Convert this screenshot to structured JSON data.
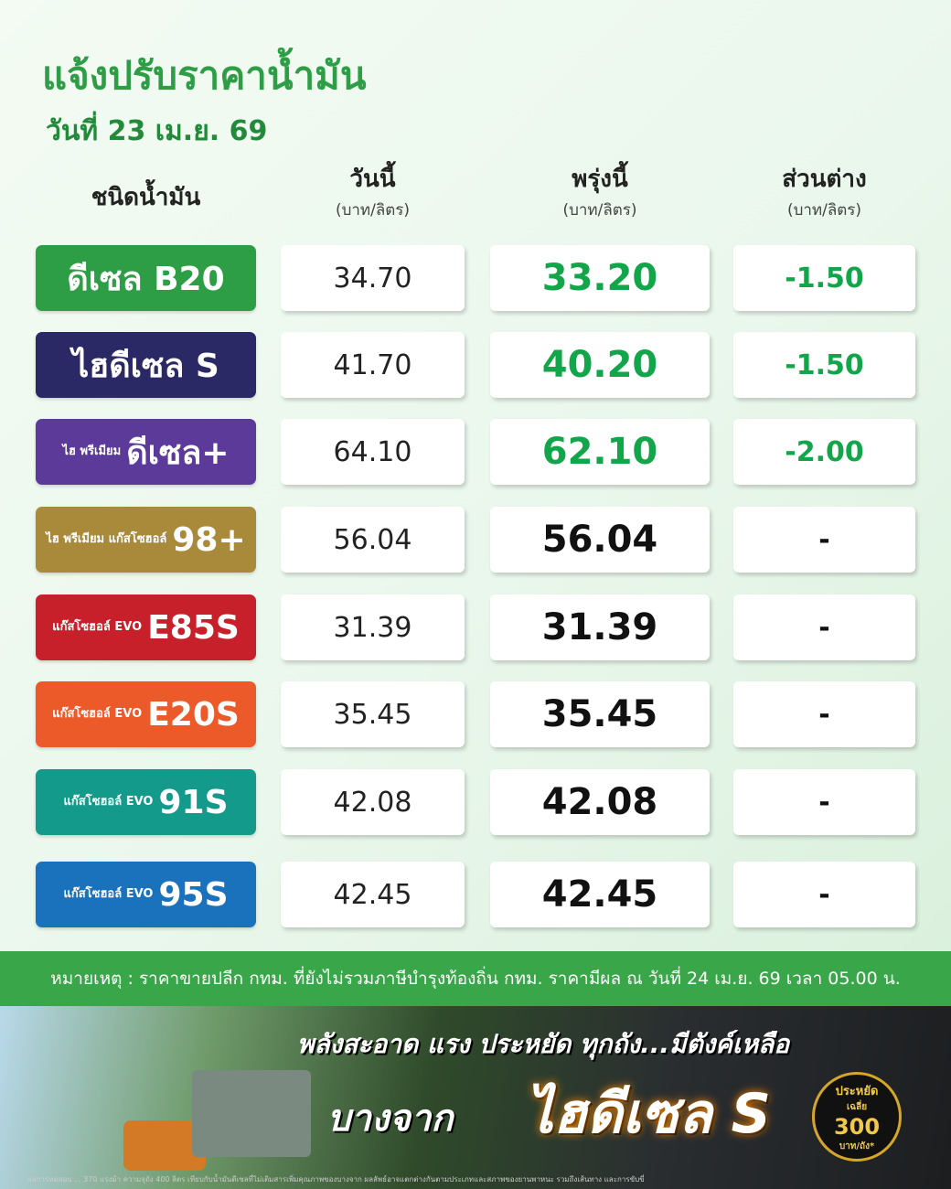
{
  "title": "แจ้งปรับราคาน้ำมัน",
  "date": "วันที่ 23 เม.ย. 69",
  "headers": {
    "type": "ชนิดน้ำมัน",
    "today": "วันนี้",
    "tomorrow": "พรุ่งนี้",
    "diff": "ส่วนต่าง",
    "unit": "(บาท/ลิตร)"
  },
  "colors": {
    "down": "#13a54a",
    "same": "#111111"
  },
  "rows": [
    {
      "name": "ดีเซล B20",
      "prefix": "",
      "color": "#2e9e46",
      "today": "34.70",
      "tomorrow": "33.20",
      "diff": "-1.50"
    },
    {
      "name": "ไฮดีเซล S",
      "prefix": "",
      "color": "#2a2865",
      "today": "41.70",
      "tomorrow": "40.20",
      "diff": "-1.50"
    },
    {
      "name": "ดีเซล+",
      "prefix": "ไฮ พรีเมียม",
      "color": "#5b3a9a",
      "today": "64.10",
      "tomorrow": "62.10",
      "diff": "-2.00"
    },
    {
      "name": "98+",
      "prefix": "ไฮ พรีเมียม แก๊สโซฮอล์",
      "color": "#a98a3a",
      "today": "56.04",
      "tomorrow": "56.04",
      "diff": "-"
    },
    {
      "name": "E85S",
      "prefix": "แก๊สโซฮอล์ EVO",
      "color": "#c8202a",
      "today": "31.39",
      "tomorrow": "31.39",
      "diff": "-"
    },
    {
      "name": "E20S",
      "prefix": "แก๊สโซฮอล์ EVO",
      "color": "#ec5a2a",
      "today": "35.45",
      "tomorrow": "35.45",
      "diff": "-"
    },
    {
      "name": "91S",
      "prefix": "แก๊สโซฮอล์ EVO",
      "color": "#139a8a",
      "today": "42.08",
      "tomorrow": "42.08",
      "diff": "-"
    },
    {
      "name": "95S",
      "prefix": "แก๊สโซฮอล์ EVO",
      "color": "#1a72bc",
      "today": "42.45",
      "tomorrow": "42.45",
      "diff": "-"
    }
  ],
  "note": "หมายเหตุ : ราคาขายปลีก กทม. ที่ยังไม่รวมภาษีบำรุงท้องถิ่น กทม. ราคามีผล ณ วันที่ 24 เม.ย. 69 เวลา 05.00 น.",
  "banner": {
    "line1": "พลังสะอาด แรง ประหยัด ทุกถัง...มีตังค์เหลือ",
    "line2": "บางจาก",
    "brand": "ไฮดีเซล S",
    "badge_top": "ประหยัด",
    "badge_mid": "เฉลี่ย",
    "badge_num": "300",
    "badge_unit": "บาท/ถัง*",
    "fine": "ผลการทดสอบ ... 370 แรงม้า ความจุถัง 400 ลิตร เทียบกับน้ำมันดีเซลที่ไม่เติมสารเพิ่มคุณภาพของบางจาก ผลลัพธ์อาจแตกต่างกันตามประเภทและสภาพของยานพาหนะ รวมถึงเส้นทาง และการขับขี่"
  }
}
